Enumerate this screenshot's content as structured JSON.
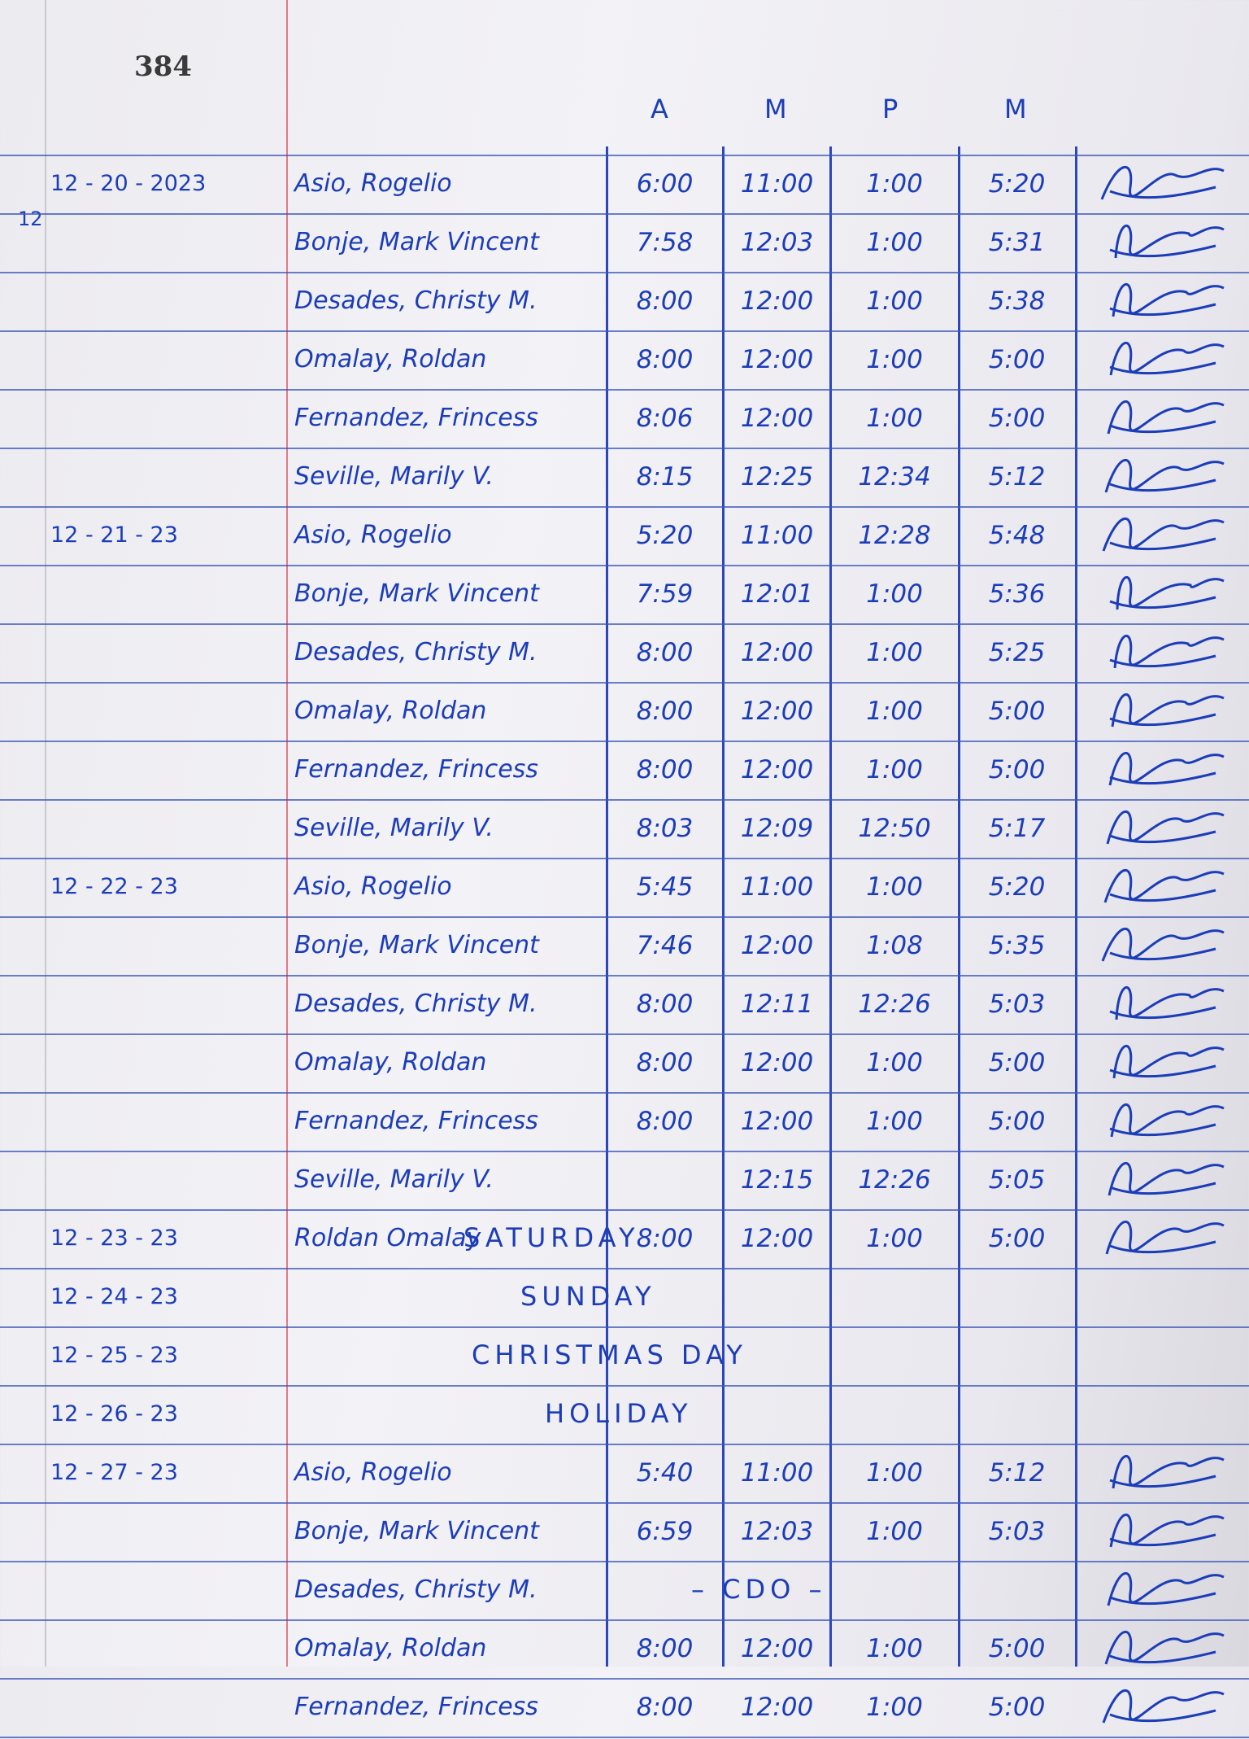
{
  "page_number": "384",
  "column_headers": [
    "A",
    "M",
    "P",
    "M"
  ],
  "ink_color": "#1c3db8",
  "margin_mark": "12",
  "rows": [
    {
      "date": "12 - 20 - 2023",
      "name": "Asio, Rogelio",
      "am_in": "6:00",
      "am_out": "11:00",
      "pm_in": "1:00",
      "pm_out": "5:20",
      "signed": true
    },
    {
      "date": "",
      "name": "Bonje, Mark Vincent",
      "am_in": "7:58",
      "am_out": "12:03",
      "pm_in": "1:00",
      "pm_out": "5:31",
      "signed": true
    },
    {
      "date": "",
      "name": "Desades, Christy M.",
      "am_in": "8:00",
      "am_out": "12:00",
      "pm_in": "1:00",
      "pm_out": "5:38",
      "signed": true
    },
    {
      "date": "",
      "name": "Omalay, Roldan",
      "am_in": "8:00",
      "am_out": "12:00",
      "pm_in": "1:00",
      "pm_out": "5:00",
      "signed": true
    },
    {
      "date": "",
      "name": "Fernandez, Frincess",
      "am_in": "8:06",
      "am_out": "12:00",
      "pm_in": "1:00",
      "pm_out": "5:00",
      "signed": true
    },
    {
      "date": "",
      "name": "Seville, Marily V.",
      "am_in": "8:15",
      "am_out": "12:25",
      "pm_in": "12:34",
      "pm_out": "5:12",
      "signed": true
    },
    {
      "date": "12 - 21 - 23",
      "name": "Asio, Rogelio",
      "am_in": "5:20",
      "am_out": "11:00",
      "pm_in": "12:28",
      "pm_out": "5:48",
      "signed": true
    },
    {
      "date": "",
      "name": "Bonje, Mark Vincent",
      "am_in": "7:59",
      "am_out": "12:01",
      "pm_in": "1:00",
      "pm_out": "5:36",
      "signed": true
    },
    {
      "date": "",
      "name": "Desades, Christy M.",
      "am_in": "8:00",
      "am_out": "12:00",
      "pm_in": "1:00",
      "pm_out": "5:25",
      "signed": true
    },
    {
      "date": "",
      "name": "Omalay, Roldan",
      "am_in": "8:00",
      "am_out": "12:00",
      "pm_in": "1:00",
      "pm_out": "5:00",
      "signed": true
    },
    {
      "date": "",
      "name": "Fernandez, Frincess",
      "am_in": "8:00",
      "am_out": "12:00",
      "pm_in": "1:00",
      "pm_out": "5:00",
      "signed": true
    },
    {
      "date": "",
      "name": "Seville, Marily V.",
      "am_in": "8:03",
      "am_out": "12:09",
      "pm_in": "12:50",
      "pm_out": "5:17",
      "signed": true
    },
    {
      "date": "12 - 22 - 23",
      "name": "Asio, Rogelio",
      "am_in": "5:45",
      "am_out": "11:00",
      "pm_in": "1:00",
      "pm_out": "5:20",
      "signed": true
    },
    {
      "date": "",
      "name": "Bonje, Mark Vincent",
      "am_in": "7:46",
      "am_out": "12:00",
      "pm_in": "1:08",
      "pm_out": "5:35",
      "signed": true
    },
    {
      "date": "",
      "name": "Desades, Christy M.",
      "am_in": "8:00",
      "am_out": "12:11",
      "pm_in": "12:26",
      "pm_out": "5:03",
      "signed": true
    },
    {
      "date": "",
      "name": "Omalay, Roldan",
      "am_in": "8:00",
      "am_out": "12:00",
      "pm_in": "1:00",
      "pm_out": "5:00",
      "signed": true
    },
    {
      "date": "",
      "name": "Fernandez, Frincess",
      "am_in": "8:00",
      "am_out": "12:00",
      "pm_in": "1:00",
      "pm_out": "5:00",
      "signed": true
    },
    {
      "date": "",
      "name": "Seville, Marily V.",
      "am_in": "",
      "am_out": "12:15",
      "pm_in": "12:26",
      "pm_out": "5:05",
      "signed": true
    },
    {
      "date": "12 - 23 - 23",
      "name": "Roldan Omalay",
      "am_in": "8:00",
      "am_out": "12:00",
      "pm_in": "1:00",
      "pm_out": "5:00",
      "note": "SATURDAY",
      "signed": true
    },
    {
      "date": "12 - 24 - 23",
      "name": "",
      "am_in": "",
      "am_out": "",
      "pm_in": "",
      "pm_out": "",
      "note": "SUNDAY",
      "signed": false
    },
    {
      "date": "12 - 25 - 23",
      "name": "",
      "am_in": "",
      "am_out": "",
      "pm_in": "",
      "pm_out": "",
      "note": "CHRISTMAS DAY",
      "signed": false
    },
    {
      "date": "12 - 26 - 23",
      "name": "",
      "am_in": "",
      "am_out": "",
      "pm_in": "",
      "pm_out": "",
      "note": "HOLIDAY",
      "signed": false
    },
    {
      "date": "12 - 27 - 23",
      "name": "Asio, Rogelio",
      "am_in": "5:40",
      "am_out": "11:00",
      "pm_in": "1:00",
      "pm_out": "5:12",
      "signed": true
    },
    {
      "date": "",
      "name": "Bonje, Mark Vincent",
      "am_in": "6:59",
      "am_out": "12:03",
      "pm_in": "1:00",
      "pm_out": "5:03",
      "signed": true
    },
    {
      "date": "",
      "name": "Desades, Christy M.",
      "am_in": "",
      "am_out": "",
      "pm_in": "",
      "pm_out": "",
      "note": "– CDO –",
      "signed": true
    },
    {
      "date": "",
      "name": "Omalay, Roldan",
      "am_in": "8:00",
      "am_out": "12:00",
      "pm_in": "1:00",
      "pm_out": "5:00",
      "signed": true
    },
    {
      "date": "",
      "name": "Fernandez, Frincess",
      "am_in": "8:00",
      "am_out": "12:00",
      "pm_in": "1:00",
      "pm_out": "5:00",
      "signed": true
    }
  ]
}
